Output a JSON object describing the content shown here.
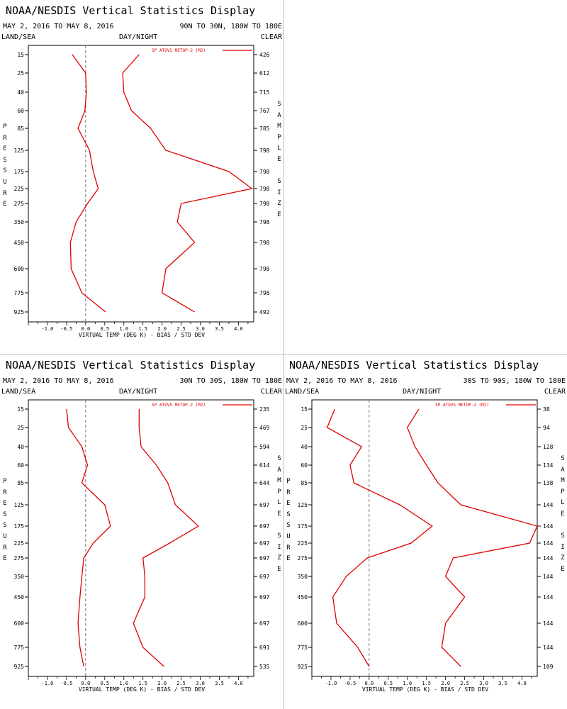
{
  "common": {
    "title": "NOAA/NESDIS Vertical Statistics Display",
    "date_range": "MAY 2, 2016 TO MAY 8, 2016",
    "header_left": "LAND/SEA",
    "header_mid": "DAY/NIGHT",
    "header_right": "CLEAR",
    "left_vertical_label": "PRESSURE",
    "right_vertical_label": "SAMPLE SIZE",
    "colors": {
      "series": "#e00000",
      "axis": "#000000",
      "zero_line": "#555555"
    }
  },
  "chart_data": [
    {
      "type": "line",
      "region": "90N TO 30N, 180W TO 180E",
      "title": "NOAA/NESDIS Vertical Statistics Display",
      "subtitle": "MAY 2, 2016 TO MAY 8, 2016",
      "xlabel": "VIRTUAL TEMP (DEG K) - BIAS / STD DEV",
      "ylabel": "PRESSURE",
      "xlim": [
        -1.5,
        4.4
      ],
      "xticks": [
        "-1.0",
        "-0.5",
        "0.0",
        "0.5",
        "1.0",
        "1.5",
        "2.0",
        "2.5",
        "3.0",
        "3.5",
        "4.0"
      ],
      "pressure_levels": [
        "15",
        "25",
        "40",
        "60",
        "85",
        "125",
        "175",
        "225",
        "275",
        "350",
        "450",
        "600",
        "775",
        "925"
      ],
      "sample_size": [
        "426",
        "612",
        "715",
        "767",
        "785",
        "798",
        "798",
        "798",
        "798",
        "798",
        "798",
        "798",
        "798",
        "492"
      ],
      "legend": "SP ATOVS METOP-2 (M2)",
      "series": [
        {
          "name": "SP ATOVS METOP-2 (M2)",
          "stat": "bias",
          "values": [
            -0.35,
            0.0,
            0.02,
            -0.02,
            -0.2,
            0.1,
            0.2,
            0.33,
            0.05,
            -0.25,
            -0.4,
            -0.38,
            -0.1,
            0.52
          ]
        },
        {
          "name": "SP ATOVS METOP-2 (M2)",
          "stat": "std_dev",
          "values": [
            1.4,
            0.97,
            1.0,
            1.2,
            1.7,
            2.1,
            3.75,
            4.35,
            2.5,
            2.4,
            2.85,
            2.1,
            2.0,
            2.85
          ]
        }
      ],
      "grid": false,
      "legend_placement": "top-right"
    },
    {
      "type": "line",
      "region": "30N TO 30S, 180W TO 180E",
      "title": "NOAA/NESDIS Vertical Statistics Display",
      "subtitle": "MAY 2, 2016 TO MAY 8, 2016",
      "xlabel": "VIRTUAL TEMP (DEG K) - BIAS / STD DEV",
      "ylabel": "PRESSURE",
      "xlim": [
        -1.5,
        4.4
      ],
      "xticks": [
        "-1.0",
        "-0.5",
        "0.0",
        "0.5",
        "1.0",
        "1.5",
        "2.0",
        "2.5",
        "3.0",
        "3.5",
        "4.0"
      ],
      "pressure_levels": [
        "15",
        "25",
        "40",
        "60",
        "85",
        "125",
        "175",
        "225",
        "275",
        "350",
        "450",
        "600",
        "775",
        "925"
      ],
      "sample_size": [
        "235",
        "469",
        "594",
        "614",
        "644",
        "697",
        "697",
        "697",
        "697",
        "697",
        "697",
        "697",
        "691",
        "535"
      ],
      "legend": "SP ATOVS METOP-2 (M2)",
      "series": [
        {
          "name": "SP ATOVS METOP-2 (M2)",
          "stat": "bias",
          "values": [
            -0.5,
            -0.45,
            -0.1,
            0.05,
            -0.1,
            0.5,
            0.65,
            0.2,
            -0.05,
            -0.1,
            -0.15,
            -0.2,
            -0.15,
            -0.05
          ]
        },
        {
          "name": "SP ATOVS METOP-2 (M2)",
          "stat": "std_dev",
          "values": [
            1.4,
            1.4,
            1.45,
            1.85,
            2.15,
            2.35,
            2.95,
            2.2,
            1.5,
            1.55,
            1.55,
            1.25,
            1.5,
            2.05
          ]
        }
      ],
      "grid": false,
      "legend_placement": "top-right"
    },
    {
      "type": "line",
      "region": "30S TO 90S, 180W TO 180E",
      "title": "NOAA/NESDIS Vertical Statistics Display",
      "subtitle": "MAY 2, 2016 TO MAY 8, 2016",
      "xlabel": "VIRTUAL TEMP (DEG K) - BIAS / STD DEV",
      "ylabel": "PRESSURE",
      "xlim": [
        -1.5,
        4.4
      ],
      "xticks": [
        "-1.0",
        "-0.5",
        "0.0",
        "0.5",
        "1.0",
        "1.5",
        "2.0",
        "2.5",
        "3.0",
        "3.5",
        "4.0"
      ],
      "pressure_levels": [
        "15",
        "25",
        "40",
        "60",
        "85",
        "125",
        "175",
        "225",
        "275",
        "350",
        "450",
        "600",
        "775",
        "925"
      ],
      "sample_size": [
        "38",
        "94",
        "128",
        "134",
        "138",
        "144",
        "144",
        "144",
        "144",
        "144",
        "144",
        "144",
        "144",
        "109"
      ],
      "legend": "SP ATOVS METOP-2 (M2)",
      "series": [
        {
          "name": "SP ATOVS METOP-2 (M2)",
          "stat": "bias",
          "values": [
            -0.9,
            -1.1,
            -0.2,
            -0.5,
            -0.4,
            0.8,
            1.65,
            1.1,
            -0.05,
            -0.6,
            -0.95,
            -0.85,
            -0.3,
            0.0
          ]
        },
        {
          "name": "SP ATOVS METOP-2 (M2)",
          "stat": "std_dev",
          "values": [
            1.3,
            1.0,
            1.2,
            1.5,
            1.8,
            2.4,
            4.4,
            4.2,
            2.2,
            2.0,
            2.5,
            2.0,
            1.9,
            2.4
          ]
        }
      ],
      "grid": false,
      "legend_placement": "top-right"
    }
  ]
}
